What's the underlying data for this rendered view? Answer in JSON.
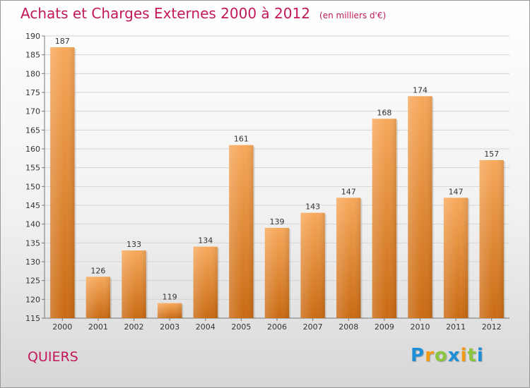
{
  "chart_data": {
    "type": "bar",
    "title": "Achats et Charges Externes 2000 à 2012",
    "subtitle": "(en milliers d'€)",
    "categories": [
      "2000",
      "2001",
      "2002",
      "2003",
      "2004",
      "2005",
      "2006",
      "2007",
      "2008",
      "2009",
      "2010",
      "2011",
      "2012"
    ],
    "values": [
      187,
      126,
      133,
      119,
      134,
      161,
      139,
      143,
      147,
      168,
      174,
      147,
      157
    ],
    "ylim": [
      115,
      190
    ],
    "yticks": [
      115,
      120,
      125,
      130,
      135,
      140,
      145,
      150,
      155,
      160,
      165,
      170,
      175,
      180,
      185,
      190
    ],
    "grid": true,
    "legend": "none",
    "colors": {
      "bar_top": "#f7a85a",
      "bar_bottom": "#c96a12",
      "accent": "#c2185b"
    }
  },
  "commune": "QUIERS",
  "brand": {
    "name": "Proxiti",
    "letters": [
      "P",
      "r",
      "o",
      "x",
      "i",
      "t",
      "i"
    ],
    "letter_colors": [
      "#1e8fd6",
      "#f29a12",
      "#8cc63f",
      "#1e8fd6",
      "#f29a12",
      "#8cc63f",
      "#1e8fd6"
    ]
  }
}
